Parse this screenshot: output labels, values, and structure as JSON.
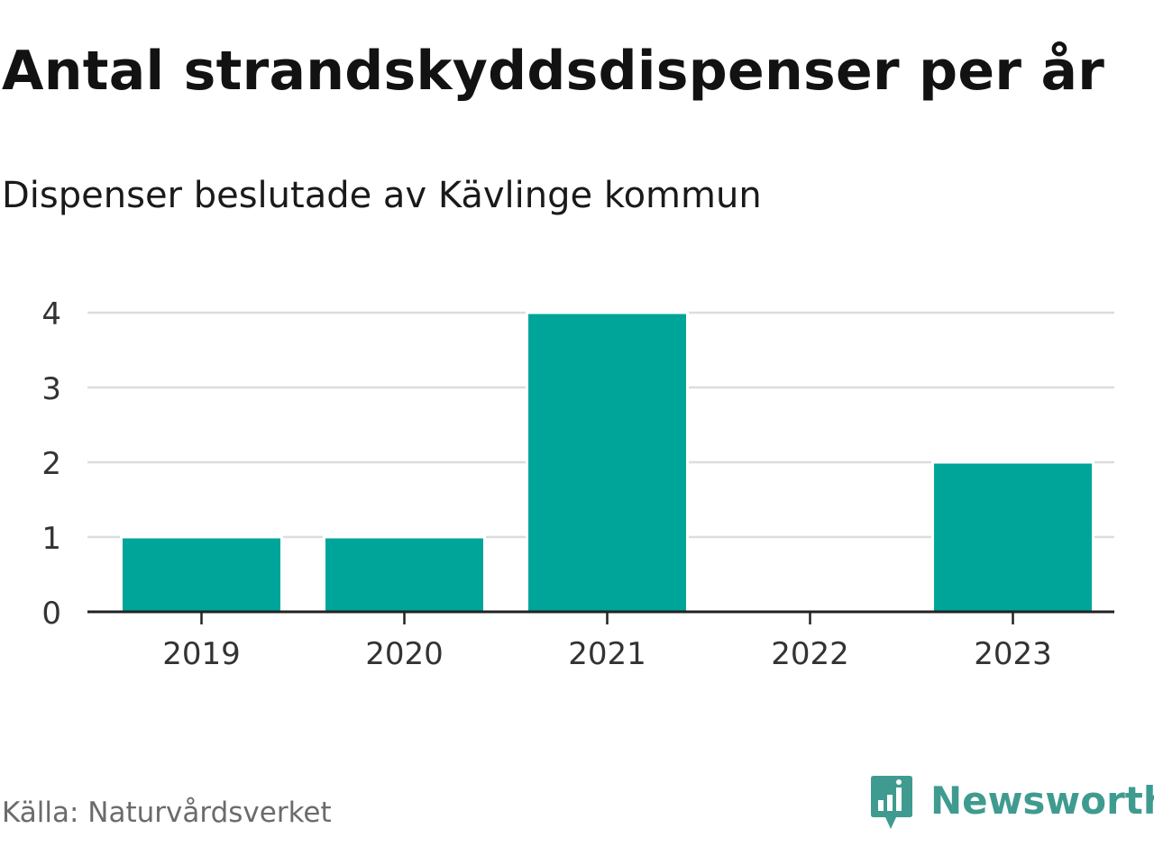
{
  "title": "Antal strandskyddsdispenser per år",
  "subtitle": "Dispenser beslutade av Kävlinge kommun",
  "source": "Källa: Naturvårdsverket",
  "brand": {
    "name": "Newsworthy",
    "icon": "newsworthy-logo-icon",
    "color": "#3f9b8f"
  },
  "colors": {
    "bar": "#00a59a",
    "grid": "#dddddd",
    "axis": "#222222"
  },
  "chart_data": {
    "type": "bar",
    "categories": [
      "2019",
      "2020",
      "2021",
      "2022",
      "2023"
    ],
    "values": [
      1,
      1,
      4,
      0,
      2
    ],
    "title": "Antal strandskyddsdispenser per år",
    "subtitle": "Dispenser beslutade av Kävlinge kommun",
    "xlabel": "",
    "ylabel": "",
    "ylim": [
      0,
      4
    ],
    "yticks": [
      "0",
      "1",
      "2",
      "3",
      "4"
    ],
    "grid": true
  }
}
